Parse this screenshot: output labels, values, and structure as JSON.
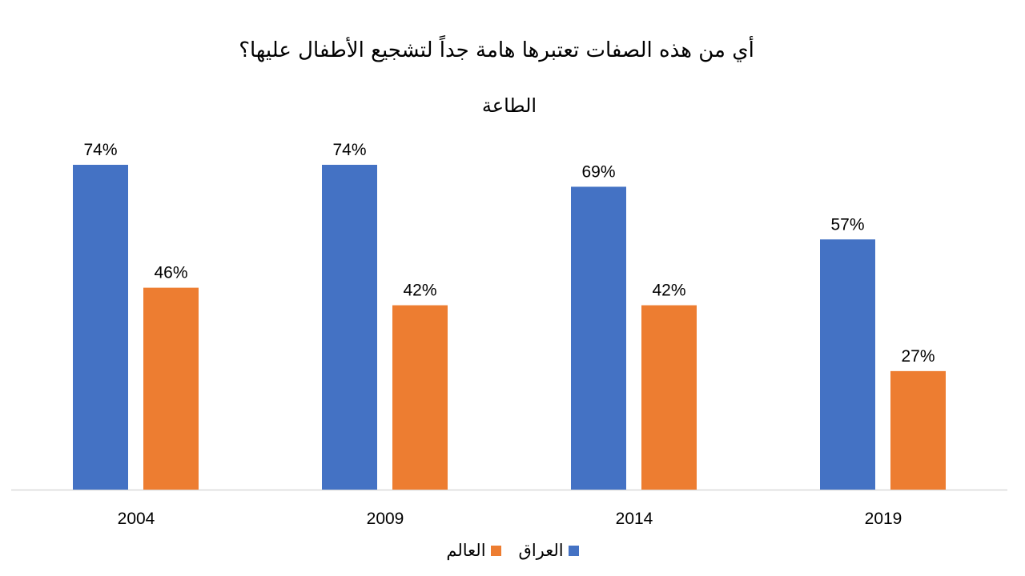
{
  "chart_data": {
    "type": "bar",
    "title": "أي من هذه الصفات تعتبرها هامة جداً لتشجيع الأطفال عليها؟",
    "subtitle": "الطاعة",
    "categories": [
      "2004",
      "2009",
      "2014",
      "2019"
    ],
    "series": [
      {
        "name": "العراق",
        "color": "#4472C4",
        "values": [
          74,
          74,
          69,
          57
        ],
        "labels": [
          "74%",
          "74%",
          "69%",
          "57%"
        ]
      },
      {
        "name": "العالم",
        "color": "#ED7D31",
        "values": [
          46,
          42,
          42,
          27
        ],
        "labels": [
          "46%",
          "42%",
          "42%",
          "27%"
        ]
      }
    ],
    "ylim": [
      0,
      100
    ],
    "grid": false,
    "legend_position": "bottom"
  }
}
